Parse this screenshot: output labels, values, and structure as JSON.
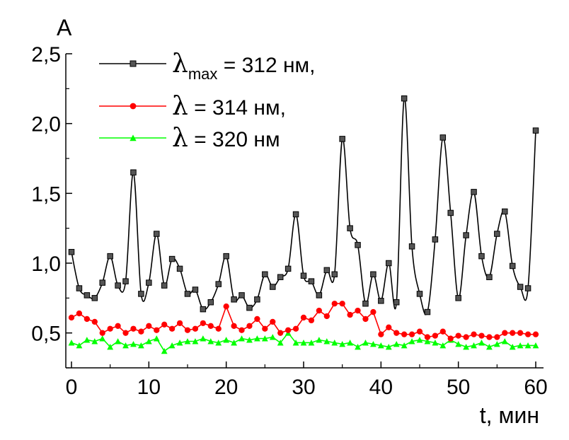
{
  "chart_data": {
    "type": "line",
    "ylabel": "A",
    "xlabel": "t, мин",
    "xlim": [
      0,
      60
    ],
    "ylim": [
      0.25,
      2.5
    ],
    "xticks": [
      0,
      10,
      20,
      30,
      40,
      50,
      60
    ],
    "xtick_labels": [
      "0",
      "10",
      "20",
      "30",
      "40",
      "50",
      "60"
    ],
    "yticks": [
      0.5,
      1.0,
      1.5,
      2.0,
      2.5
    ],
    "ytick_labels": [
      "0,5",
      "1,0",
      "1,5",
      "2,0",
      "2,5"
    ],
    "grid": false,
    "legend_position": "top-left",
    "series": [
      {
        "legend": {
          "symbol": "λ",
          "sub": "max",
          "text": " = 312 нм,"
        },
        "color": "#000000",
        "marker": "square",
        "marker_fill": "#555555",
        "smooth": true,
        "x": [
          0,
          1,
          2,
          3,
          4,
          5,
          6,
          7,
          8,
          9,
          10,
          11,
          12,
          13,
          14,
          15,
          16,
          17,
          18,
          19,
          20,
          21,
          22,
          23,
          24,
          25,
          26,
          27,
          28,
          29,
          30,
          31,
          32,
          33,
          34,
          35,
          36,
          37,
          38,
          39,
          40,
          41,
          42,
          43,
          44,
          45,
          46,
          47,
          48,
          49,
          50,
          51,
          52,
          53,
          54,
          55,
          56,
          57,
          58,
          59,
          60
        ],
        "y": [
          1.08,
          0.82,
          0.77,
          0.75,
          0.86,
          1.05,
          0.84,
          0.87,
          1.65,
          0.78,
          0.86,
          1.21,
          0.84,
          1.03,
          0.96,
          0.78,
          0.81,
          0.67,
          0.72,
          0.85,
          1.05,
          0.74,
          0.77,
          0.68,
          0.74,
          0.92,
          0.83,
          0.9,
          0.96,
          1.35,
          0.91,
          0.87,
          0.77,
          0.95,
          0.92,
          1.89,
          1.25,
          1.13,
          0.71,
          0.92,
          0.73,
          1.0,
          0.72,
          2.18,
          1.12,
          0.78,
          0.65,
          1.17,
          1.9,
          1.36,
          0.75,
          1.2,
          1.51,
          1.05,
          0.9,
          1.21,
          1.37,
          0.98,
          0.83,
          0.82,
          1.95
        ]
      },
      {
        "legend": {
          "symbol": "λ",
          "sub": "",
          "text": " = 314 нм,"
        },
        "color": "#ff0000",
        "marker": "circle",
        "marker_fill": "#ff0000",
        "smooth": false,
        "x": [
          0,
          1,
          2,
          3,
          4,
          5,
          6,
          7,
          8,
          9,
          10,
          11,
          12,
          13,
          14,
          15,
          16,
          17,
          18,
          19,
          20,
          21,
          22,
          23,
          24,
          25,
          26,
          27,
          28,
          29,
          30,
          31,
          32,
          33,
          34,
          35,
          36,
          37,
          38,
          39,
          40,
          41,
          42,
          43,
          44,
          45,
          46,
          47,
          48,
          49,
          50,
          51,
          52,
          53,
          54,
          55,
          56,
          57,
          58,
          59,
          60
        ],
        "y": [
          0.61,
          0.64,
          0.6,
          0.58,
          0.5,
          0.53,
          0.55,
          0.5,
          0.53,
          0.51,
          0.55,
          0.52,
          0.56,
          0.53,
          0.57,
          0.52,
          0.53,
          0.57,
          0.55,
          0.53,
          0.69,
          0.55,
          0.52,
          0.55,
          0.6,
          0.53,
          0.58,
          0.5,
          0.52,
          0.53,
          0.61,
          0.59,
          0.66,
          0.62,
          0.71,
          0.71,
          0.63,
          0.66,
          0.6,
          0.65,
          0.49,
          0.54,
          0.5,
          0.49,
          0.49,
          0.51,
          0.47,
          0.48,
          0.51,
          0.46,
          0.48,
          0.47,
          0.49,
          0.48,
          0.47,
          0.47,
          0.5,
          0.5,
          0.5,
          0.49,
          0.49
        ]
      },
      {
        "legend": {
          "symbol": "λ",
          "sub": "",
          "text": " = 320 нм"
        },
        "color": "#00ff00",
        "marker": "triangle",
        "marker_fill": "#00ff00",
        "smooth": false,
        "x": [
          0,
          1,
          2,
          3,
          4,
          5,
          6,
          7,
          8,
          9,
          10,
          11,
          12,
          13,
          14,
          15,
          16,
          17,
          18,
          19,
          20,
          21,
          22,
          23,
          24,
          25,
          26,
          27,
          28,
          29,
          30,
          31,
          32,
          33,
          34,
          35,
          36,
          37,
          38,
          39,
          40,
          41,
          42,
          43,
          44,
          45,
          46,
          47,
          48,
          49,
          50,
          51,
          52,
          53,
          54,
          55,
          56,
          57,
          58,
          59,
          60
        ],
        "y": [
          0.43,
          0.41,
          0.45,
          0.44,
          0.46,
          0.4,
          0.44,
          0.41,
          0.42,
          0.41,
          0.44,
          0.46,
          0.37,
          0.41,
          0.43,
          0.44,
          0.44,
          0.46,
          0.44,
          0.43,
          0.45,
          0.43,
          0.46,
          0.45,
          0.46,
          0.46,
          0.47,
          0.43,
          0.5,
          0.43,
          0.43,
          0.43,
          0.45,
          0.44,
          0.43,
          0.42,
          0.43,
          0.4,
          0.43,
          0.42,
          0.41,
          0.4,
          0.42,
          0.41,
          0.44,
          0.45,
          0.44,
          0.43,
          0.41,
          0.45,
          0.42,
          0.4,
          0.41,
          0.43,
          0.4,
          0.42,
          0.44,
          0.4,
          0.41,
          0.41,
          0.41
        ]
      }
    ]
  }
}
